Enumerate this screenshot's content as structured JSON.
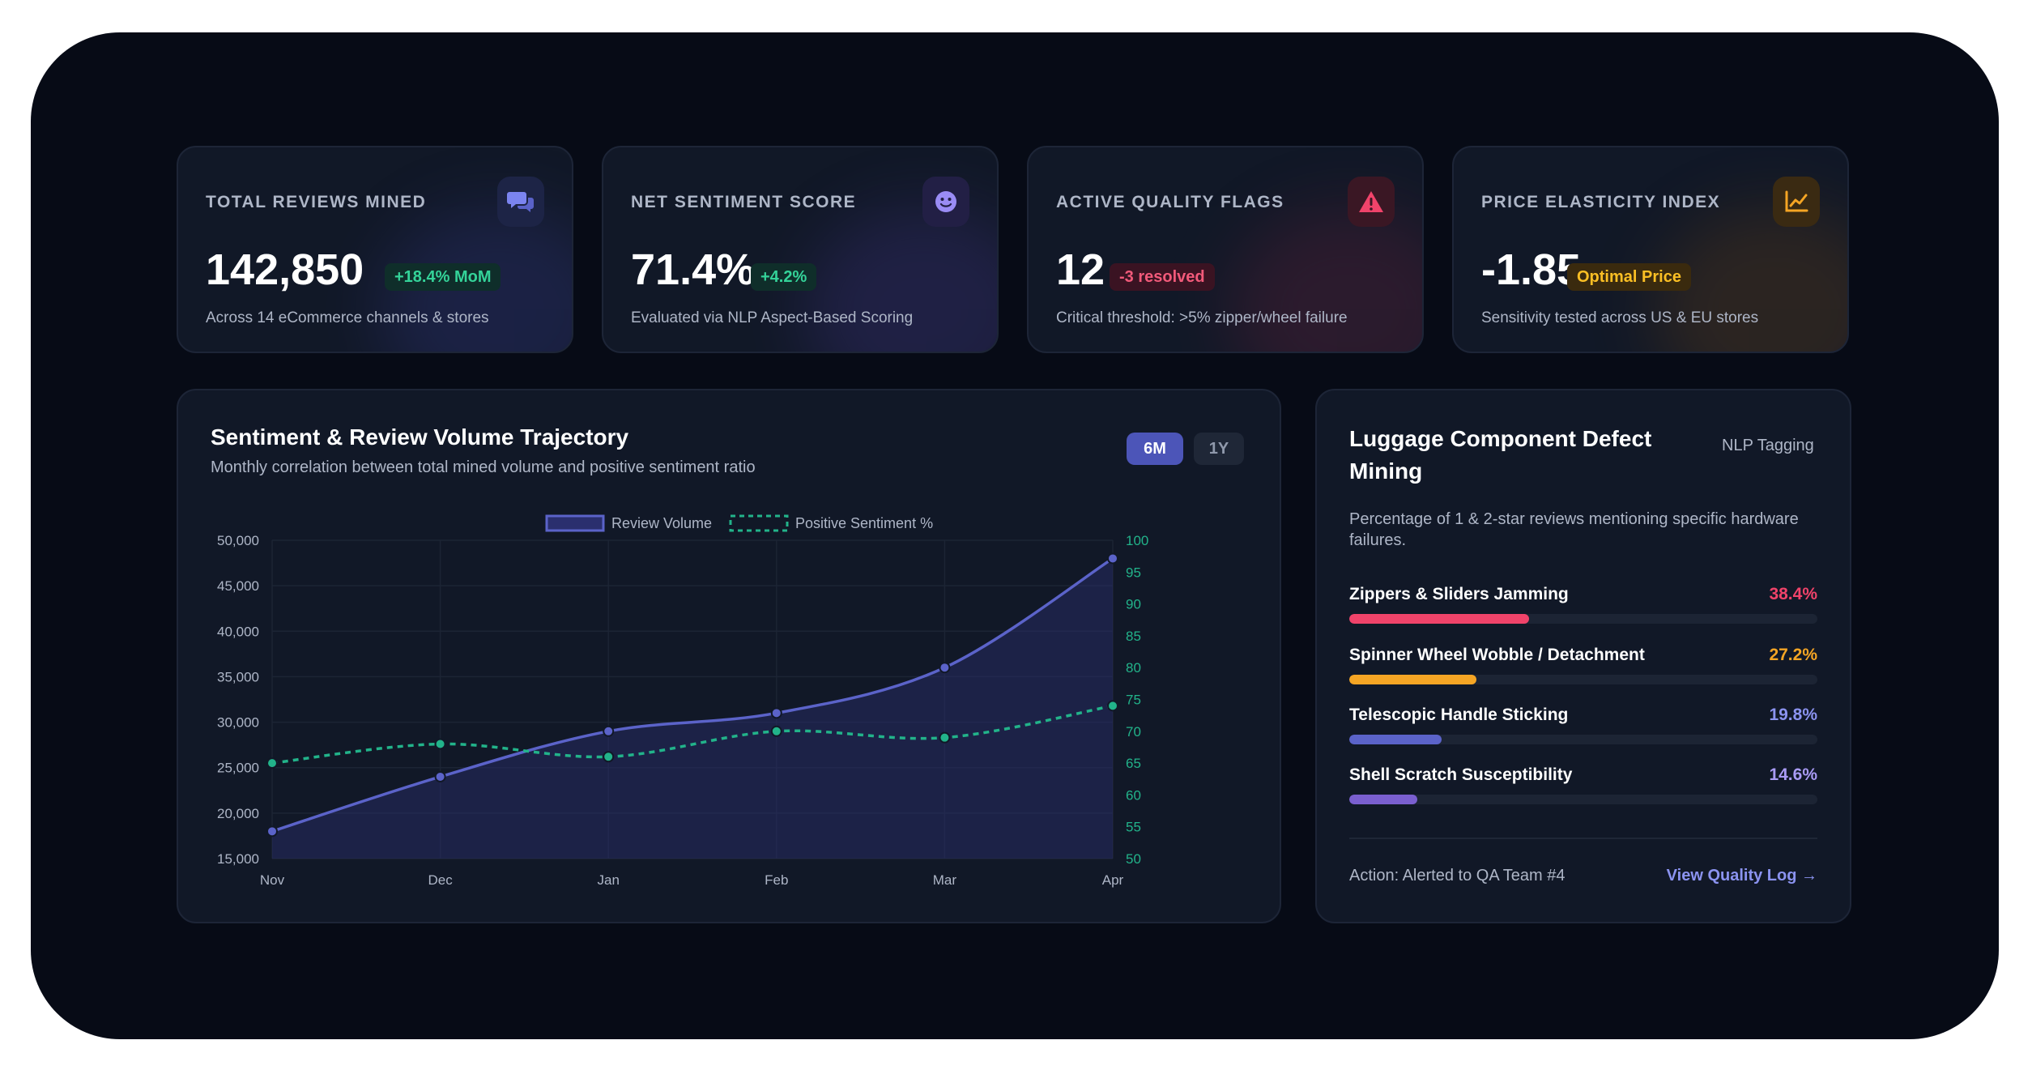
{
  "kpis": [
    {
      "label": "TOTAL REVIEWS MINED",
      "value": "142,850",
      "badge": "+18.4% MoM",
      "badge_color": "#34d399",
      "badge_bg": "#0f2e2a",
      "subtitle": "Across 14 eCommerce channels & stores",
      "icon": "chat-bubbles-icon",
      "accent": "#6b74e0"
    },
    {
      "label": "NET SENTIMENT SCORE",
      "value": "71.4%",
      "badge": "+4.2%",
      "badge_color": "#34d399",
      "badge_bg": "#0f2e2a",
      "subtitle": "Evaluated via NLP Aspect-Based Scoring",
      "icon": "smile-icon",
      "accent": "#8b7cf0"
    },
    {
      "label": "ACTIVE QUALITY FLAGS",
      "value": "12",
      "badge": "-3 resolved",
      "badge_color": "#f25a7a",
      "badge_bg": "#3a1322",
      "subtitle": "Critical threshold: >5% zipper/wheel failure",
      "icon": "warning-icon",
      "accent": "#e0445f"
    },
    {
      "label": "PRICE ELASTICITY INDEX",
      "value": "-1.85",
      "badge": "Optimal Price",
      "badge_color": "#fbbf24",
      "badge_bg": "#3a2a0e",
      "subtitle": "Sensitivity tested across US & EU stores",
      "icon": "trend-chart-icon",
      "accent": "#f59e0b"
    }
  ],
  "trajectory": {
    "title": "Sentiment & Review Volume Trajectory",
    "subtitle": "Monthly correlation between total mined volume and positive sentiment ratio",
    "range_active": "6M",
    "range_inactive": "1Y"
  },
  "chart_data": {
    "type": "line",
    "x": [
      "Nov",
      "Dec",
      "Jan",
      "Feb",
      "Mar",
      "Apr"
    ],
    "series": [
      {
        "name": "Review Volume",
        "axis": "left",
        "values": [
          18000,
          24000,
          29000,
          31000,
          36000,
          48000
        ],
        "color": "#5b63c9",
        "style": "solid",
        "fill": true
      },
      {
        "name": "Positive Sentiment %",
        "axis": "right",
        "values": [
          65,
          68,
          66,
          70,
          69,
          74
        ],
        "color": "#22b38a",
        "style": "dashed",
        "fill": false
      }
    ],
    "y_left": {
      "min": 15000,
      "max": 50000,
      "ticks": [
        "15,000",
        "20,000",
        "25,000",
        "30,000",
        "35,000",
        "40,000",
        "45,000",
        "50,000"
      ]
    },
    "y_right": {
      "min": 50,
      "max": 100,
      "ticks": [
        "50",
        "55",
        "60",
        "65",
        "70",
        "75",
        "80",
        "85",
        "90",
        "95",
        "100"
      ]
    },
    "legend_position": "top-center",
    "grid": true
  },
  "defects": {
    "title": "Luggage Component Defect Mining",
    "tag": "NLP Tagging",
    "description": "Percentage of 1 & 2-star reviews mentioning specific hardware failures.",
    "items": [
      {
        "name": "Zippers & Sliders Jamming",
        "pct_label": "38.4%",
        "pct": 38.4,
        "color": "#f0436a"
      },
      {
        "name": "Spinner Wheel Wobble / Detachment",
        "pct_label": "27.2%",
        "pct": 27.2,
        "color": "#f5a524"
      },
      {
        "name": "Telescopic Handle Sticking",
        "pct_label": "19.8%",
        "pct": 19.8,
        "color": "#5b63c9"
      },
      {
        "name": "Shell Scratch Susceptibility",
        "pct_label": "14.6%",
        "pct": 14.6,
        "color": "#7a5fcf"
      }
    ],
    "action": "Action: Alerted to QA Team #4",
    "link": "View Quality Log →"
  }
}
